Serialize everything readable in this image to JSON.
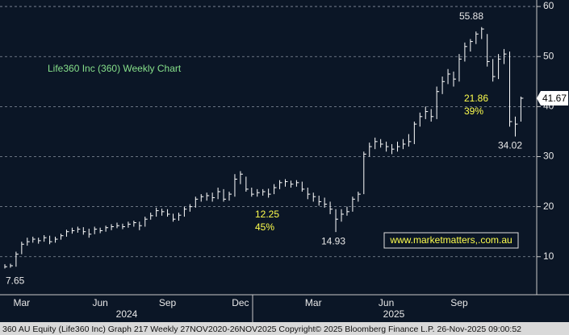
{
  "chart_data": {
    "type": "ohlc",
    "title": "Life360 Inc (360) Weekly Chart",
    "categories": [
      null,
      null,
      null,
      "Mar",
      null,
      null,
      null,
      null,
      null,
      null,
      null,
      null,
      null,
      null,
      null,
      null,
      null,
      "Jun",
      null,
      null,
      null,
      null,
      null,
      null,
      null,
      null,
      null,
      null,
      null,
      "Sep",
      null,
      null,
      null,
      null,
      null,
      null,
      null,
      null,
      null,
      null,
      null,
      null,
      "Dec",
      null,
      null,
      null,
      null,
      null,
      null,
      null,
      null,
      null,
      null,
      null,
      null,
      "Mar",
      null,
      null,
      null,
      null,
      null,
      null,
      null,
      null,
      null,
      null,
      null,
      null,
      "Jun",
      null,
      null,
      null,
      null,
      null,
      null,
      null,
      null,
      null,
      null,
      null,
      null,
      "Sep",
      null,
      null,
      null,
      null,
      null,
      null,
      null,
      null,
      null,
      null,
      null
    ],
    "year_labels": [
      "2024",
      "2025"
    ],
    "high": [
      8.5,
      8.6,
      11.0,
      13.0,
      13.8,
      14.0,
      13.8,
      14.3,
      14.2,
      14.0,
      14.6,
      15.4,
      15.8,
      16.0,
      15.9,
      15.6,
      16.0,
      15.8,
      16.2,
      16.5,
      16.8,
      16.6,
      17.0,
      17.2,
      17.0,
      18.0,
      18.8,
      19.8,
      19.6,
      19.5,
      18.6,
      18.8,
      20.0,
      20.5,
      22.0,
      22.5,
      22.8,
      22.8,
      23.8,
      23.5,
      23.0,
      26.5,
      27.1,
      26.0,
      23.8,
      23.5,
      23.5,
      23.6,
      24.5,
      25.3,
      25.5,
      25.2,
      25.3,
      25.0,
      23.8,
      22.8,
      22.2,
      21.8,
      21.0,
      19.5,
      19.5,
      20.0,
      22.0,
      23.0,
      31.0,
      32.8,
      33.8,
      33.5,
      33.0,
      32.5,
      33.0,
      33.5,
      34.5,
      37.0,
      38.8,
      40.0,
      39.5,
      44.0,
      46.0,
      47.5,
      47.0,
      50.5,
      52.8,
      53.5,
      55.0,
      55.88,
      54.5,
      49.5,
      50.5,
      51.5,
      51.0,
      38.0,
      42.0
    ],
    "low": [
      7.65,
      7.8,
      8.0,
      10.5,
      12.2,
      12.8,
      12.6,
      13.0,
      12.5,
      12.8,
      13.4,
      14.0,
      14.6,
      14.8,
      14.4,
      13.8,
      14.5,
      14.7,
      15.0,
      15.3,
      15.7,
      15.5,
      15.8,
      16.0,
      15.3,
      16.0,
      17.4,
      18.0,
      18.2,
      18.0,
      17.0,
      17.2,
      18.0,
      19.0,
      19.8,
      21.0,
      21.2,
      21.0,
      21.5,
      21.0,
      21.2,
      22.0,
      24.5,
      23.0,
      22.0,
      22.0,
      22.2,
      21.8,
      22.5,
      23.5,
      24.0,
      23.8,
      24.0,
      23.0,
      21.5,
      21.0,
      20.2,
      19.8,
      18.5,
      14.93,
      17.0,
      18.2,
      19.0,
      21.0,
      22.5,
      30.0,
      31.5,
      31.8,
      31.0,
      30.5,
      31.0,
      31.5,
      32.0,
      32.5,
      36.0,
      37.5,
      37.0,
      37.5,
      42.5,
      44.5,
      44.0,
      45.0,
      49.0,
      51.0,
      52.5,
      53.5,
      48.0,
      45.0,
      45.5,
      48.5,
      36.0,
      34.02,
      37.0
    ],
    "close": [
      8.0,
      8.2,
      10.5,
      12.5,
      13.0,
      13.5,
      13.2,
      13.8,
      13.0,
      13.5,
      14.2,
      15.0,
      15.2,
      15.5,
      15.0,
      14.5,
      15.5,
      15.2,
      15.8,
      16.0,
      16.2,
      16.0,
      16.5,
      16.8,
      16.2,
      17.5,
      18.2,
      19.2,
      19.0,
      18.5,
      17.5,
      18.3,
      19.5,
      20.0,
      21.5,
      22.0,
      22.2,
      21.8,
      23.0,
      21.5,
      22.5,
      25.5,
      26.5,
      23.5,
      22.5,
      22.8,
      23.0,
      22.5,
      23.8,
      24.8,
      25.0,
      24.5,
      24.8,
      23.5,
      22.5,
      22.0,
      21.0,
      20.5,
      19.5,
      17.5,
      18.5,
      19.0,
      21.5,
      22.5,
      30.5,
      32.0,
      33.0,
      32.5,
      32.0,
      31.5,
      32.0,
      32.5,
      33.0,
      36.5,
      38.0,
      39.0,
      38.0,
      43.0,
      45.0,
      46.5,
      45.5,
      49.5,
      52.0,
      53.0,
      54.5,
      55.5,
      49.0,
      46.0,
      49.5,
      50.5,
      37.0,
      36.5,
      41.67
    ],
    "color": "#ffffff",
    "ylim": [
      2.4,
      61.3
    ],
    "yticks": [
      10,
      20,
      30,
      40,
      50,
      60
    ],
    "grid": true,
    "annotations": [
      {
        "text": "12.25",
        "sub": "45%"
      },
      {
        "text": "21.86",
        "sub": "39%"
      }
    ],
    "watermark": "www.marketmatters,.com.au",
    "footer": "360 AU Equity (Life360 Inc) Graph 217 Weekly 27NOV2020-26NOV2025  Copyright© 2025 Bloomberg Finance L.P.   26-Nov-2025 09:00:52"
  }
}
